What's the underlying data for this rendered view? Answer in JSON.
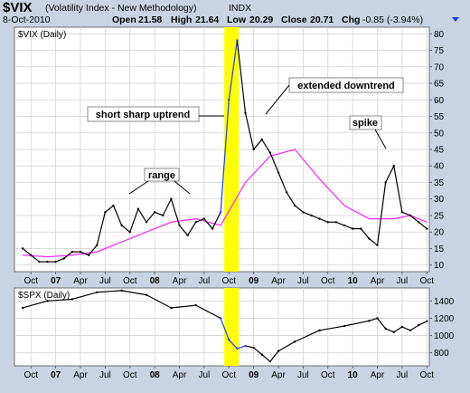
{
  "header": {
    "symbol": "$VIX",
    "description": "(Volatility Index - New Methodology)",
    "exchange": "INDX",
    "date": "8-Oct-2010",
    "open_label": "Open",
    "open": "21.58",
    "high_label": "High",
    "high": "21.64",
    "low_label": "Low",
    "low": "20.29",
    "close_label": "Close",
    "close": "20.71",
    "chg_label": "Chg",
    "chg": "-0.85 (-3.94%)"
  },
  "colors": {
    "background": "#c9d3e4",
    "plot": "#ffffff",
    "grid": "#d2d2d2",
    "price": "#000000",
    "uptrend_segment": "#1a3cff",
    "moving_average": "#ff22ff",
    "highlight": "#ffff00",
    "callout_blue": "#1a3cff",
    "callout_green": "#1d7a1d",
    "callout_red": "#e01010"
  },
  "chart_data": [
    {
      "type": "line",
      "legend": "$VIX (Daily)",
      "series": [
        {
          "role": "price",
          "style": "black line, blue during highlighted uptrend",
          "x": [
            "2006-09",
            "2006-10",
            "2006-11",
            "2006-12",
            "2007-01",
            "2007-02",
            "2007-03",
            "2007-04",
            "2007-05",
            "2007-06",
            "2007-07",
            "2007-08",
            "2007-09",
            "2007-10",
            "2007-11",
            "2007-12",
            "2008-01",
            "2008-02",
            "2008-03",
            "2008-04",
            "2008-05",
            "2008-06",
            "2008-07",
            "2008-08",
            "2008-09",
            "2008-10",
            "2008-11",
            "2008-12",
            "2009-01",
            "2009-02",
            "2009-03",
            "2009-04",
            "2009-05",
            "2009-06",
            "2009-07",
            "2009-08",
            "2009-09",
            "2009-10",
            "2009-11",
            "2009-12",
            "2010-01",
            "2010-02",
            "2010-03",
            "2010-04",
            "2010-05",
            "2010-06",
            "2010-07",
            "2010-08",
            "2010-09",
            "2010-10"
          ],
          "values": [
            15,
            13,
            11,
            11,
            11,
            12,
            14,
            14,
            13,
            16,
            26,
            28,
            22,
            20,
            27,
            23,
            26,
            25,
            30,
            22,
            19,
            23,
            24,
            21,
            26,
            60,
            78,
            56,
            45,
            48,
            44,
            38,
            32,
            28,
            26,
            25,
            24,
            23,
            23,
            22,
            21,
            21,
            18,
            16,
            35,
            40,
            26,
            25,
            23,
            21
          ]
        },
        {
          "role": "moving_average",
          "style": "magenta line",
          "x": [
            "2006-09",
            "2006-12",
            "2007-03",
            "2007-06",
            "2007-09",
            "2007-12",
            "2008-03",
            "2008-06",
            "2008-09",
            "2008-12",
            "2009-03",
            "2009-06",
            "2009-09",
            "2009-12",
            "2010-03",
            "2010-06",
            "2010-08",
            "2010-10"
          ],
          "values": [
            13,
            12.5,
            13,
            14,
            17,
            20,
            23,
            24,
            22,
            35,
            43,
            45,
            36,
            28,
            24,
            24,
            25,
            23
          ]
        }
      ],
      "y_ticks": [
        10,
        15,
        20,
        25,
        30,
        35,
        40,
        45,
        50,
        55,
        60,
        65,
        70,
        75,
        80
      ],
      "ylim": [
        8,
        82
      ],
      "x_ticks": [
        "Oct",
        "07",
        "Apr",
        "Jul",
        "Oct",
        "08",
        "Apr",
        "Jul",
        "Oct",
        "09",
        "Apr",
        "Jul",
        "Oct",
        "10",
        "Apr",
        "Jul",
        "Oct"
      ],
      "y_axis_side": "right",
      "grid": true,
      "highlight_band": {
        "from": "2008-09",
        "to": "2008-10"
      },
      "annotations": [
        {
          "text": "short sharp uptrend",
          "color": "green"
        },
        {
          "text": "extended downtrend",
          "color": "red"
        },
        {
          "text": "range",
          "color": "blue"
        },
        {
          "text": "spike",
          "color": "red"
        }
      ]
    },
    {
      "type": "line",
      "legend": "$SPX (Daily)",
      "series": [
        {
          "role": "price",
          "x": [
            "2006-09",
            "2006-12",
            "2007-03",
            "2007-06",
            "2007-09",
            "2007-12",
            "2008-03",
            "2008-06",
            "2008-09",
            "2008-10",
            "2008-11",
            "2008-12",
            "2009-01",
            "2009-02",
            "2009-03",
            "2009-04",
            "2009-06",
            "2009-09",
            "2009-12",
            "2010-03",
            "2010-04",
            "2010-05",
            "2010-06",
            "2010-07",
            "2010-08",
            "2010-09",
            "2010-10"
          ],
          "values": [
            1320,
            1400,
            1420,
            1500,
            1520,
            1470,
            1320,
            1350,
            1200,
            950,
            850,
            880,
            860,
            780,
            700,
            820,
            930,
            1060,
            1110,
            1170,
            1200,
            1080,
            1040,
            1100,
            1060,
            1120,
            1165
          ]
        }
      ],
      "y_ticks": [
        800,
        1000,
        1200,
        1400
      ],
      "ylim": [
        650,
        1550
      ],
      "x_ticks": [
        "Oct",
        "07",
        "Apr",
        "Jul",
        "Oct",
        "08",
        "Apr",
        "Jul",
        "Oct",
        "09",
        "Apr",
        "Jul",
        "Oct",
        "10",
        "Apr",
        "Jul",
        "Oct"
      ],
      "y_axis_side": "right",
      "grid": true,
      "highlight_band": {
        "from": "2008-09",
        "to": "2008-10"
      }
    }
  ]
}
